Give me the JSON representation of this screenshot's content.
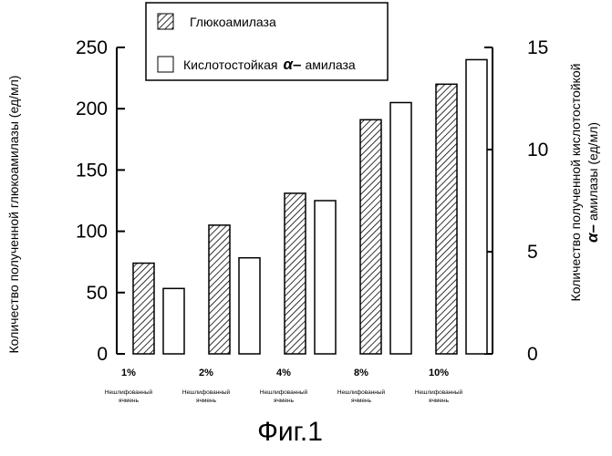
{
  "chart_data": {
    "type": "bar",
    "categories": [
      "1%",
      "2%",
      "4%",
      "8%",
      "10%"
    ],
    "category_sublabel": [
      "Нешлифованный",
      "ячмень"
    ],
    "series": [
      {
        "name": "Глюкоамилаза",
        "axis": "left",
        "pattern": "hatched",
        "values": [
          74,
          105,
          131,
          191,
          220
        ]
      },
      {
        "name_prefix": "Кислотостойкая",
        "name_symbol": "α–",
        "name_suffix": "амилаза",
        "axis": "right",
        "pattern": "open",
        "values": [
          3.2,
          4.7,
          7.5,
          12.3,
          14.4
        ]
      }
    ],
    "y_left": {
      "label": "Количество полученной глюкоамилазы (ед/мл)",
      "ylim": [
        0,
        250
      ],
      "ticks": [
        0,
        50,
        100,
        150,
        200,
        250
      ]
    },
    "y_right": {
      "label_line1": "Количество полученной кислотостойкой",
      "label_line2_symbol": "α–",
      "label_line2_text": "амилазы (ед/мл)",
      "ylim": [
        0,
        15
      ],
      "ticks": [
        0,
        5,
        10,
        15
      ]
    },
    "legend_position": "top-center",
    "grid": false,
    "caption": "Фиг.1"
  }
}
